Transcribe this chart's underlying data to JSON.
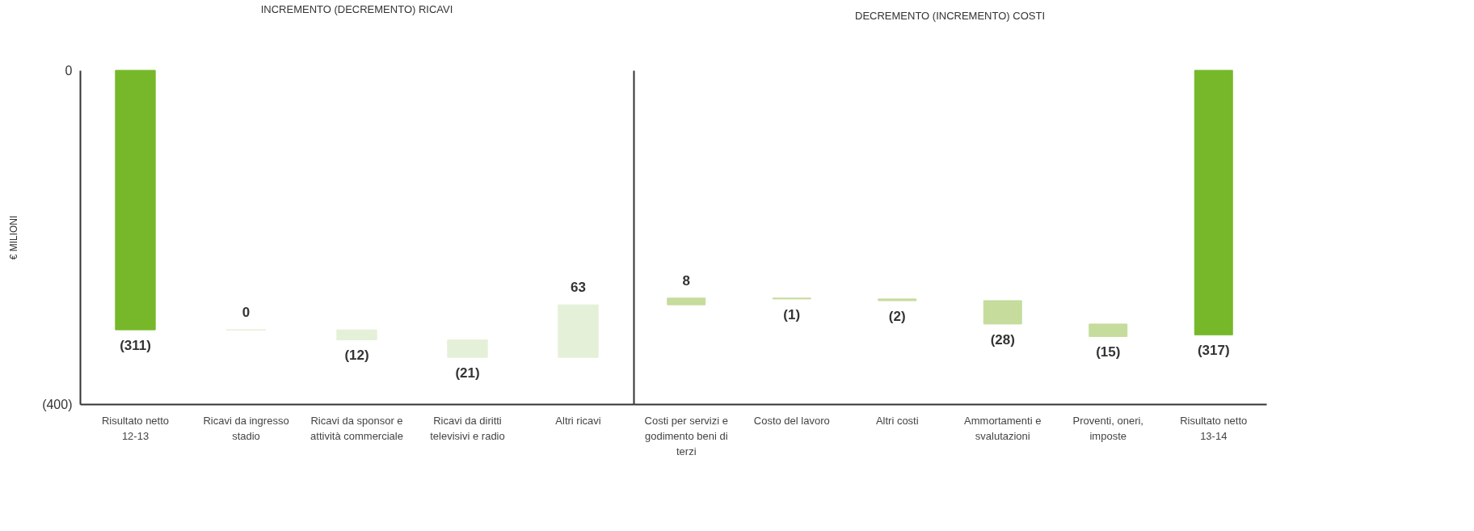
{
  "chart_data": [
    {
      "type": "bar",
      "title": "INCREMENTO (DECREMENTO) RICAVI",
      "ylabel": "€ MILIONI",
      "categories": [
        "Risultato netto 12-13",
        "Ricavi da ingresso stadio",
        "Ricavi da sponsor e attività commerciale",
        "Ricavi da diritti televisivi e radio",
        "Altri ricavi"
      ],
      "values": [
        -311,
        0,
        -12,
        -21,
        63
      ],
      "base": [
        0,
        -311,
        -311,
        -323,
        -344
      ],
      "colors": [
        "#76b82a",
        "#e5f0d8",
        "#e5f0d8",
        "#e5f0d8",
        "#e5f0d8"
      ],
      "value_labels": [
        "(311)",
        "0",
        "(12)",
        "(21)",
        "63"
      ],
      "ylim": [
        -400,
        0
      ],
      "yticks": [
        {
          "value": 0,
          "label": "0"
        },
        {
          "value": -400,
          "label": "(400)"
        }
      ],
      "grid": false
    },
    {
      "type": "bar",
      "title": "DECREMENTO (INCREMENTO) COSTI",
      "categories": [
        "Costi per servizi e godimento beni di terzi",
        "Costo del lavoro",
        "Altri costi",
        "Ammortamenti e svalutazioni",
        "Proventi, oneri, imposte",
        "Risultato netto 13-14"
      ],
      "values": [
        8,
        -1,
        -2,
        -28,
        -15,
        -317
      ],
      "base": [
        -281,
        -273,
        -274,
        -276,
        -304,
        0
      ],
      "colors": [
        "#c5dc9c",
        "#c5dc9c",
        "#c5dc9c",
        "#c5dc9c",
        "#c5dc9c",
        "#76b82a"
      ],
      "value_labels": [
        "8",
        "(1)",
        "(2)",
        "(28)",
        "(15)",
        "(317)"
      ],
      "ylim": [
        -400,
        0
      ],
      "tick_labels": "x",
      "grid": false
    }
  ]
}
